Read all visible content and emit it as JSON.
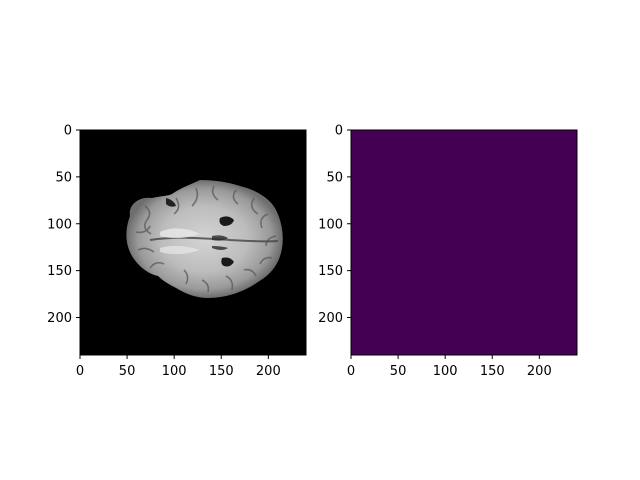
{
  "panels": [
    {
      "name": "mri-brain-slice",
      "content": "grayscale axial brain MRI slice",
      "background": "#000000",
      "xticks": [
        0,
        50,
        100,
        150,
        200
      ],
      "yticks": [
        0,
        50,
        100,
        150,
        200
      ],
      "xlim": [
        0,
        240
      ],
      "ylim": [
        240,
        0
      ]
    },
    {
      "name": "segmentation-mask",
      "content": "empty mask rendered with viridis colormap (all zeros)",
      "fill": "#440154",
      "xticks": [
        0,
        50,
        100,
        150,
        200
      ],
      "yticks": [
        0,
        50,
        100,
        150,
        200
      ],
      "xlim": [
        0,
        240
      ],
      "ylim": [
        240,
        0
      ]
    }
  ]
}
